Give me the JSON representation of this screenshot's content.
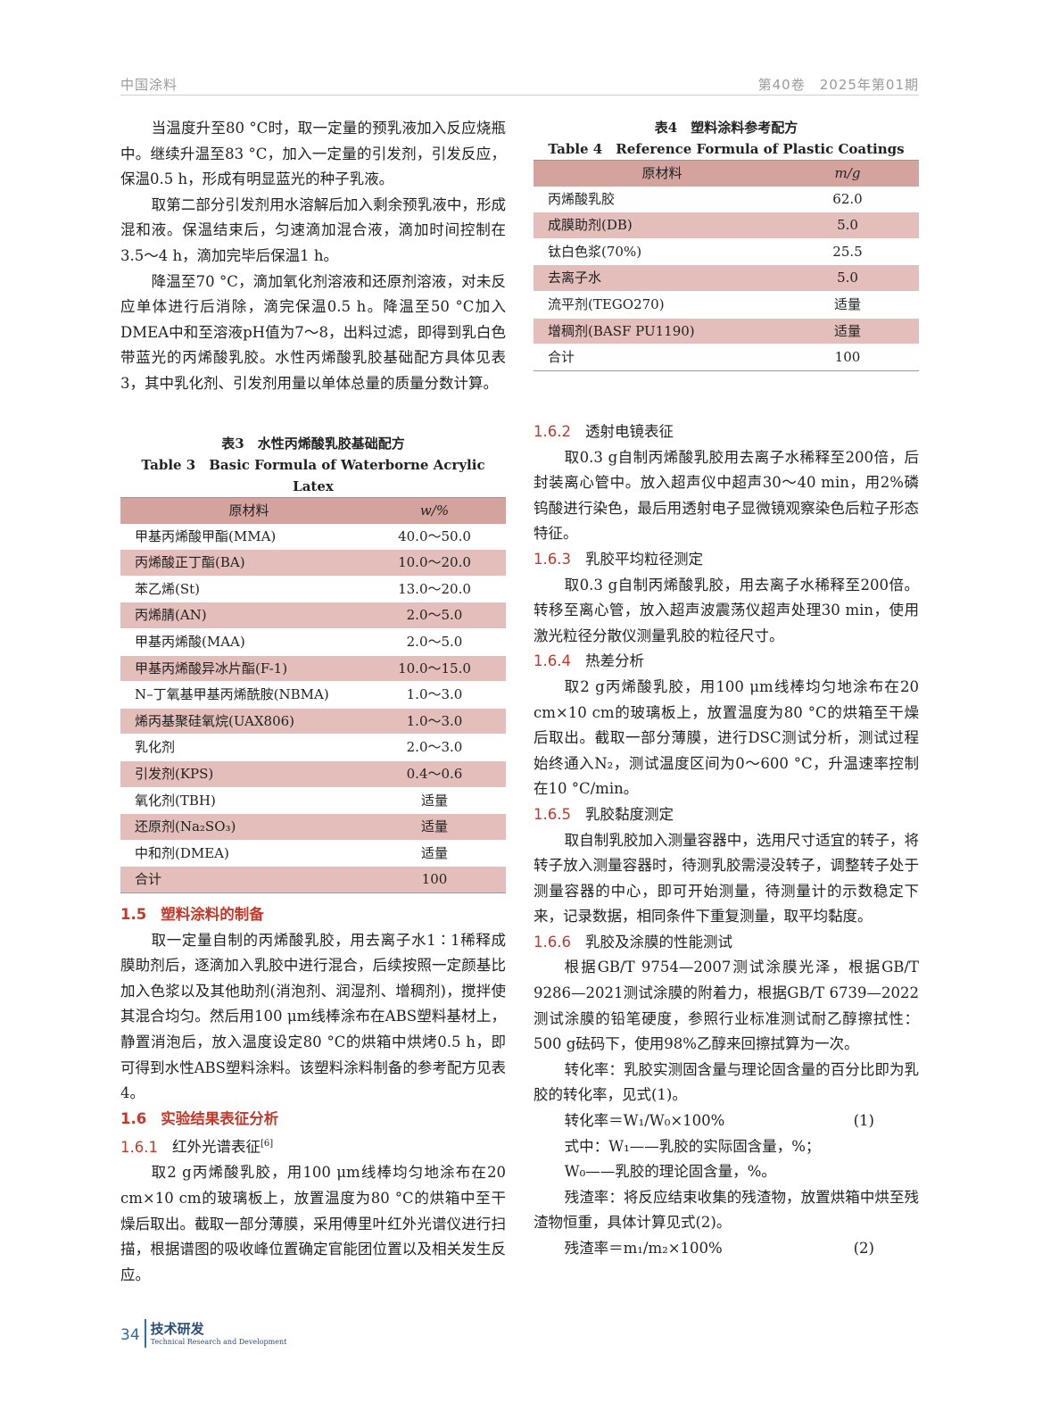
{
  "header": {
    "journal": "中国涂料",
    "issue": "第40卷　2025年第01期"
  },
  "left": {
    "paras1": [
      "当温度升至80 °C时，取一定量的预乳液加入反应烧瓶中。继续升温至83 °C，加入一定量的引发剂，引发反应，保温0.5 h，形成有明显蓝光的种子乳液。",
      "取第二部分引发剂用水溶解后加入剩余预乳液中，形成混和液。保温结束后，匀速滴加混合液，滴加时间控制在3.5～4 h，滴加完毕后保温1 h。",
      "降温至70 °C，滴加氧化剂溶液和还原剂溶液，对未反应单体进行后消除，滴完保温0.5 h。降温至50 °C加入DMEA中和至溶液pH值为7～8，出料过滤，即得到乳白色带蓝光的丙烯酸乳胶。水性丙烯酸乳胶基础配方具体见表3，其中乳化剂、引发剂用量以单体总量的质量分数计算。"
    ],
    "table3": {
      "title_cn": "表3　水性丙烯酸乳胶基础配方",
      "title_en": "Table 3　Basic Formula of Waterborne Acrylic Latex",
      "headers": [
        "原材料",
        "w/%"
      ],
      "rows": [
        [
          "甲基丙烯酸甲酯(MMA)",
          "40.0～50.0"
        ],
        [
          "丙烯酸正丁酯(BA)",
          "10.0～20.0"
        ],
        [
          "苯乙烯(St)",
          "13.0～20.0"
        ],
        [
          "丙烯腈(AN)",
          "2.0～5.0"
        ],
        [
          "甲基丙烯酸(MAA)",
          "2.0～5.0"
        ],
        [
          "甲基丙烯酸异冰片酯(F-1)",
          "10.0～15.0"
        ],
        [
          "N–丁氧基甲基丙烯酰胺(NBMA)",
          "1.0～3.0"
        ],
        [
          "烯丙基聚硅氧烷(UAX806)",
          "1.0～3.0"
        ],
        [
          "乳化剂",
          "2.0～3.0"
        ],
        [
          "引发剂(KPS)",
          "0.4～0.6"
        ],
        [
          "氧化剂(TBH)",
          "适量"
        ],
        [
          "还原剂(Na₂SO₃)",
          "适量"
        ],
        [
          "中和剂(DMEA)",
          "适量"
        ],
        [
          "合计",
          "100"
        ]
      ]
    },
    "s15": {
      "num": "1.5",
      "title": "塑料涂料的制备",
      "text": "取一定量自制的丙烯酸乳胶，用去离子水1∶1稀释成膜助剂后，逐滴加入乳胶中进行混合，后续按照一定颜基比加入色浆以及其他助剂(消泡剂、润湿剂、增稠剂)，搅拌使其混合均匀。然后用100 μm线棒涂布在ABS塑料基材上，静置消泡后，放入温度设定80 °C的烘箱中烘烤0.5 h，即可得到水性ABS塑料涂料。该塑料涂料制备的参考配方见表4。"
    },
    "s16": {
      "num": "1.6",
      "title": "实验结果表征分析"
    },
    "s161": {
      "num": "1.6.1",
      "title": "红外光谱表征",
      "ref": "[6]",
      "text": "取2 g丙烯酸乳胶，用100 μm线棒均匀地涂布在20 cm×10 cm的玻璃板上，放置温度为80 °C的烘箱中至干燥后取出。截取一部分薄膜，采用傅里叶红外光谱仪进行扫描，根据谱图的吸收峰位置确定官能团位置以及相关发生反应。"
    }
  },
  "right": {
    "table4": {
      "title_cn": "表4　塑料涂料参考配方",
      "title_en": "Table 4　Reference Formula of Plastic Coatings",
      "headers": [
        "原材料",
        "m/g"
      ],
      "rows": [
        [
          "丙烯酸乳胶",
          "62.0"
        ],
        [
          "成膜助剂(DB)",
          "5.0"
        ],
        [
          "钛白色浆(70%)",
          "25.5"
        ],
        [
          "去离子水",
          "5.0"
        ],
        [
          "流平剂(TEGO270)",
          "适量"
        ],
        [
          "增稠剂(BASF PU1190)",
          "适量"
        ],
        [
          "合计",
          "100"
        ]
      ]
    },
    "s162": {
      "num": "1.6.2",
      "title": "透射电镜表征",
      "text": "取0.3 g自制丙烯酸乳胶用去离子水稀释至200倍，后封装离心管中。放入超声仪中超声30～40 min，用2%磷钨酸进行染色，最后用透射电子显微镜观察染色后粒子形态特征。"
    },
    "s163": {
      "num": "1.6.3",
      "title": "乳胶平均粒径测定",
      "text": "取0.3 g自制丙烯酸乳胶，用去离子水稀释至200倍。转移至离心管，放入超声波震荡仪超声处理30 min，使用激光粒径分散仪测量乳胶的粒径尺寸。"
    },
    "s164": {
      "num": "1.6.4",
      "title": "热差分析",
      "text": "取2 g丙烯酸乳胶，用100 μm线棒均匀地涂布在20 cm×10 cm的玻璃板上，放置温度为80 °C的烘箱至干燥后取出。截取一部分薄膜，进行DSC测试分析，测试过程始终通入N₂，测试温度区间为0～600 °C，升温速率控制在10 °C/min。"
    },
    "s165": {
      "num": "1.6.5",
      "title": "乳胶黏度测定",
      "text": "取自制乳胶加入测量容器中，选用尺寸适宜的转子，将转子放入测量容器时，待测乳胶需浸没转子，调整转子处于测量容器的中心，即可开始测量，待测量计的示数稳定下来，记录数据，相同条件下重复测量，取平均黏度。"
    },
    "s166": {
      "num": "1.6.6",
      "title": "乳胶及涂膜的性能测试",
      "text1": "根据GB/T 9754—2007测试涂膜光泽，根据GB/T 9286—2021测试涂膜的附着力，根据GB/T 6739—2022测试涂膜的铅笔硬度，参照行业标准测试耐乙醇擦拭性：500 g砝码下，使用98%乙醇来回擦拭算为一次。",
      "text2": "转化率：乳胶实测固含量与理论固含量的百分比即为乳胶的转化率，见式(1)。",
      "eq1": "转化率＝W₁/W₀×100%",
      "eq1_no": "(1)",
      "where1": "式中：W₁——乳胶的实际固含量，%；",
      "where2": "W₀——乳胶的理论固含量，%。",
      "text3": "残渣率：将反应结束收集的残渣物，放置烘箱中烘至残渣物恒重，具体计算见式(2)。",
      "eq2": "残渣率＝m₁/m₂×100%",
      "eq2_no": "(2)"
    }
  },
  "footer": {
    "page": "34",
    "section_cn": "技术研发",
    "section_en": "Technical Research and Development"
  },
  "colors": {
    "accent": "#c0392b",
    "table_header": "#d4a39e",
    "table_stripe": "#e3bebb",
    "footer_blue": "#2e6ca4"
  }
}
